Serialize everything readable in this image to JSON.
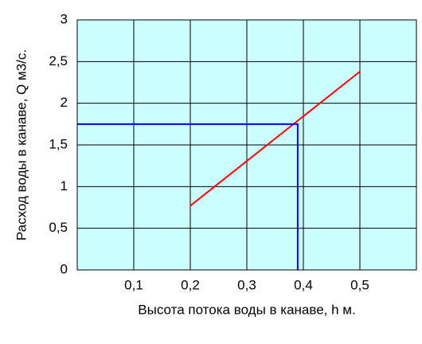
{
  "chart_data": {
    "type": "line",
    "xlabel": "Высота потока воды в канаве, h м.",
    "ylabel": "Расход воды в канаве, Q м3/с.",
    "xlim": [
      0,
      0.6
    ],
    "ylim": [
      0,
      3
    ],
    "xticks": [
      {
        "value": 0.1,
        "label": "0,1"
      },
      {
        "value": 0.2,
        "label": "0,2"
      },
      {
        "value": 0.3,
        "label": "0,3"
      },
      {
        "value": 0.4,
        "label": "0,4"
      },
      {
        "value": 0.5,
        "label": "0,5"
      }
    ],
    "yticks": [
      0,
      {
        "value": 0.5,
        "label": "0,5"
      },
      1,
      {
        "value": 1.5,
        "label": "1,5"
      },
      2,
      {
        "value": 2.5,
        "label": "2,5"
      },
      3
    ],
    "grid": true,
    "background": "#ccffff",
    "series": [
      {
        "color": "#ff0000",
        "x": [
          0.2,
          0.5
        ],
        "values": [
          0.77,
          2.38
        ]
      },
      {
        "color": "#0000ff",
        "x": [
          0,
          0.39,
          0.39
        ],
        "values": [
          1.75,
          1.75,
          0
        ]
      }
    ]
  }
}
